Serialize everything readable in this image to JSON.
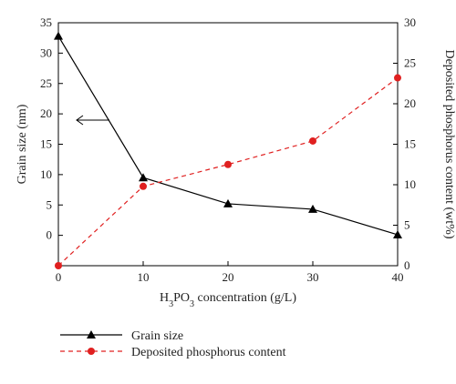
{
  "chart_data": {
    "type": "line",
    "x": [
      0,
      10,
      20,
      30,
      40
    ],
    "xlim": [
      0,
      40
    ],
    "xticks": [
      0,
      10,
      20,
      30,
      40
    ],
    "xlabel_parts": [
      {
        "t": "H",
        "sub": false
      },
      {
        "t": "3",
        "sub": true
      },
      {
        "t": "PO",
        "sub": false
      },
      {
        "t": "3",
        "sub": true
      },
      {
        "t": " concentration (g/L)",
        "sub": false
      }
    ],
    "left_axis": {
      "label": "Grain size (nm)",
      "ylim": [
        -5,
        35
      ],
      "ticks": [
        0,
        5,
        10,
        15,
        20,
        25,
        30,
        35
      ]
    },
    "right_axis": {
      "label": "Deposited phosphorus content (wt%)",
      "ylim": [
        0,
        30
      ],
      "ticks": [
        0,
        5,
        10,
        15,
        20,
        25,
        30
      ]
    },
    "series": [
      {
        "name": "Grain size",
        "axis": "left",
        "values": [
          32.8,
          9.5,
          5.2,
          4.3,
          0.1
        ],
        "color": "#000000",
        "style": "solid",
        "marker": "triangle"
      },
      {
        "name": "Deposited phosphorus content",
        "axis": "right",
        "values": [
          0,
          9.8,
          12.5,
          15.4,
          23.2
        ],
        "color": "#e02020",
        "style": "dashed",
        "marker": "circle"
      }
    ],
    "annotation": {
      "arrow": "left",
      "points_to_axis": "left"
    },
    "legend": "bottom"
  }
}
